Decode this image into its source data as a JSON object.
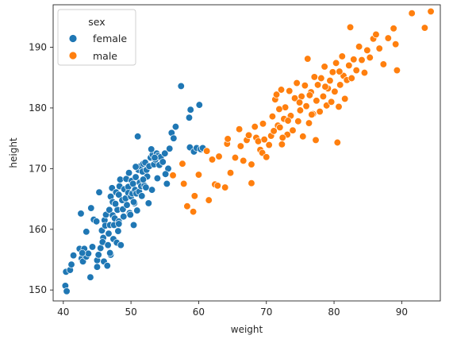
{
  "chart_data": {
    "type": "scatter",
    "title": "",
    "xlabel": "weight",
    "ylabel": "height",
    "xlim": [
      38.5,
      95.7
    ],
    "ylim": [
      148.2,
      197.0
    ],
    "xticks": [
      40,
      50,
      60,
      70,
      80,
      90
    ],
    "yticks": [
      150,
      160,
      170,
      180,
      190
    ],
    "grid": false,
    "legend": {
      "title": "sex",
      "placement": "top-left"
    },
    "colors": {
      "female": "#1f77b4",
      "male": "#ff7f0e",
      "edge": "#ffffff",
      "axis": "#262626"
    },
    "series": [
      {
        "name": "female",
        "points": [
          [
            40.3,
            150.7
          ],
          [
            40.5,
            149.8
          ],
          [
            40.4,
            153.0
          ],
          [
            41.0,
            153.3
          ],
          [
            41.2,
            154.2
          ],
          [
            41.5,
            155.7
          ],
          [
            42.4,
            156.8
          ],
          [
            42.7,
            155.2
          ],
          [
            42.6,
            162.6
          ],
          [
            42.9,
            154.7
          ],
          [
            43.1,
            156.8
          ],
          [
            43.4,
            155.5
          ],
          [
            43.4,
            159.6
          ],
          [
            43.7,
            156.0
          ],
          [
            44.1,
            163.5
          ],
          [
            44.0,
            152.1
          ],
          [
            44.3,
            157.1
          ],
          [
            44.5,
            161.6
          ],
          [
            45.0,
            154.9
          ],
          [
            45.0,
            153.8
          ],
          [
            45.3,
            166.1
          ],
          [
            45.5,
            156.9
          ],
          [
            45.7,
            159.8
          ],
          [
            45.9,
            158.6
          ],
          [
            45.8,
            157.9
          ],
          [
            46.0,
            154.7
          ],
          [
            46.1,
            161.5
          ],
          [
            46.2,
            160.6
          ],
          [
            46.3,
            162.4
          ],
          [
            46.5,
            154.0
          ],
          [
            46.6,
            157.4
          ],
          [
            46.7,
            159.3
          ],
          [
            46.8,
            163.2
          ],
          [
            46.9,
            160.7
          ],
          [
            47.0,
            155.8
          ],
          [
            47.0,
            165.4
          ],
          [
            47.2,
            166.8
          ],
          [
            47.3,
            164.5
          ],
          [
            47.3,
            162.3
          ],
          [
            47.4,
            158.4
          ],
          [
            47.5,
            160.7
          ],
          [
            47.6,
            161.8
          ],
          [
            47.8,
            166.1
          ],
          [
            47.9,
            157.8
          ],
          [
            48.0,
            163.2
          ],
          [
            48.1,
            159.7
          ],
          [
            48.2,
            165.7
          ],
          [
            48.2,
            161.3
          ],
          [
            48.3,
            167.1
          ],
          [
            48.4,
            168.2
          ],
          [
            48.5,
            157.4
          ],
          [
            48.7,
            164.8
          ],
          [
            48.8,
            163.3
          ],
          [
            48.9,
            162.1
          ],
          [
            49.0,
            166.6
          ],
          [
            49.2,
            165.1
          ],
          [
            49.3,
            168.3
          ],
          [
            49.4,
            164.0
          ],
          [
            49.6,
            167.0
          ],
          [
            49.6,
            166.0
          ],
          [
            49.7,
            169.3
          ],
          [
            49.8,
            162.7
          ],
          [
            50.0,
            165.4
          ],
          [
            50.1,
            168.0
          ],
          [
            50.2,
            165.9
          ],
          [
            50.3,
            167.5
          ],
          [
            50.4,
            160.7
          ],
          [
            50.5,
            164.3
          ],
          [
            50.6,
            166.5
          ],
          [
            50.7,
            168.6
          ],
          [
            50.8,
            165.9
          ],
          [
            50.9,
            163.1
          ],
          [
            51.0,
            175.3
          ],
          [
            51.1,
            169.8
          ],
          [
            51.2,
            166.2
          ],
          [
            51.3,
            167.7
          ],
          [
            51.4,
            170.4
          ],
          [
            51.5,
            167.1
          ],
          [
            51.6,
            165.5
          ],
          [
            51.7,
            169.5
          ],
          [
            51.8,
            170.8
          ],
          [
            51.9,
            168.3
          ],
          [
            52.0,
            167.2
          ],
          [
            52.1,
            171.0
          ],
          [
            52.3,
            169.8
          ],
          [
            52.4,
            168.7
          ],
          [
            52.6,
            164.3
          ],
          [
            52.7,
            170.4
          ],
          [
            52.9,
            171.8
          ],
          [
            53.1,
            166.5
          ],
          [
            53.2,
            172.3
          ],
          [
            53.4,
            170.7
          ],
          [
            53.6,
            171.5
          ],
          [
            53.8,
            172.5
          ],
          [
            53.9,
            168.4
          ],
          [
            54.0,
            172.1
          ],
          [
            54.2,
            170.6
          ],
          [
            54.4,
            171.9
          ],
          [
            54.7,
            171.1
          ],
          [
            55.0,
            172.5
          ],
          [
            55.3,
            167.5
          ],
          [
            55.5,
            170.0
          ],
          [
            55.7,
            173.3
          ],
          [
            56.0,
            175.9
          ],
          [
            56.3,
            175.0
          ],
          [
            56.6,
            176.9
          ],
          [
            57.4,
            183.6
          ],
          [
            58.6,
            178.4
          ],
          [
            58.8,
            179.7
          ],
          [
            58.7,
            173.5
          ],
          [
            59.3,
            172.8
          ],
          [
            59.7,
            173.4
          ],
          [
            60.1,
            180.5
          ],
          [
            60.3,
            173.2
          ],
          [
            60.6,
            173.4
          ],
          [
            50.4,
            164.5
          ],
          [
            48.2,
            160.9
          ],
          [
            44.9,
            161.3
          ],
          [
            46.9,
            156.1
          ],
          [
            53.5,
            171.8
          ],
          [
            52.2,
            166.9
          ],
          [
            49.9,
            162.4
          ],
          [
            45.2,
            155.8
          ],
          [
            42.8,
            156.1
          ],
          [
            55.1,
            169.1
          ],
          [
            51.8,
            168.2
          ],
          [
            47.7,
            164.2
          ],
          [
            50.7,
            170.3
          ],
          [
            53.0,
            173.2
          ]
        ]
      },
      {
        "name": "male",
        "points": [
          [
            56.2,
            168.9
          ],
          [
            57.6,
            170.8
          ],
          [
            57.8,
            167.5
          ],
          [
            58.3,
            163.8
          ],
          [
            59.2,
            162.9
          ],
          [
            59.4,
            165.5
          ],
          [
            60.0,
            169.0
          ],
          [
            61.2,
            172.9
          ],
          [
            61.5,
            164.8
          ],
          [
            62.0,
            171.5
          ],
          [
            62.4,
            167.4
          ],
          [
            62.8,
            167.2
          ],
          [
            63.0,
            172.0
          ],
          [
            63.9,
            166.9
          ],
          [
            64.2,
            174.1
          ],
          [
            64.3,
            174.9
          ],
          [
            64.7,
            169.3
          ],
          [
            65.4,
            171.8
          ],
          [
            66.0,
            176.5
          ],
          [
            66.2,
            173.7
          ],
          [
            66.6,
            171.3
          ],
          [
            67.1,
            174.7
          ],
          [
            67.4,
            175.5
          ],
          [
            67.8,
            170.7
          ],
          [
            67.8,
            167.6
          ],
          [
            68.3,
            176.9
          ],
          [
            68.5,
            175.1
          ],
          [
            68.8,
            174.5
          ],
          [
            69.1,
            173.1
          ],
          [
            69.4,
            172.6
          ],
          [
            69.5,
            177.4
          ],
          [
            70.0,
            171.9
          ],
          [
            70.4,
            173.9
          ],
          [
            70.7,
            175.4
          ],
          [
            70.9,
            178.6
          ],
          [
            71.1,
            176.2
          ],
          [
            71.3,
            181.4
          ],
          [
            71.5,
            182.2
          ],
          [
            71.7,
            177.1
          ],
          [
            72.0,
            176.8
          ],
          [
            72.2,
            183.0
          ],
          [
            72.3,
            174.0
          ],
          [
            72.6,
            178.2
          ],
          [
            72.8,
            180.1
          ],
          [
            73.1,
            175.6
          ],
          [
            73.4,
            182.8
          ],
          [
            73.6,
            178.7
          ],
          [
            73.9,
            176.3
          ],
          [
            74.2,
            181.6
          ],
          [
            74.5,
            184.1
          ],
          [
            74.7,
            177.8
          ],
          [
            75.0,
            179.6
          ],
          [
            75.2,
            181.9
          ],
          [
            75.4,
            175.3
          ],
          [
            75.7,
            183.7
          ],
          [
            75.9,
            180.3
          ],
          [
            76.1,
            188.1
          ],
          [
            76.3,
            177.5
          ],
          [
            76.6,
            182.6
          ],
          [
            76.9,
            179.0
          ],
          [
            77.1,
            185.1
          ],
          [
            77.3,
            174.7
          ],
          [
            77.4,
            181.2
          ],
          [
            77.6,
            183.8
          ],
          [
            77.9,
            179.4
          ],
          [
            78.1,
            184.9
          ],
          [
            78.4,
            181.9
          ],
          [
            78.6,
            186.8
          ],
          [
            78.9,
            180.4
          ],
          [
            79.1,
            183.2
          ],
          [
            79.4,
            184.5
          ],
          [
            79.6,
            181.0
          ],
          [
            79.8,
            185.9
          ],
          [
            80.1,
            182.7
          ],
          [
            80.3,
            187.4
          ],
          [
            80.5,
            174.3
          ],
          [
            80.7,
            180.2
          ],
          [
            80.9,
            183.8
          ],
          [
            81.2,
            188.5
          ],
          [
            81.4,
            185.3
          ],
          [
            81.6,
            181.5
          ],
          [
            81.9,
            184.6
          ],
          [
            82.2,
            187.0
          ],
          [
            82.4,
            193.3
          ],
          [
            82.6,
            184.9
          ],
          [
            82.9,
            188.0
          ],
          [
            83.3,
            186.2
          ],
          [
            83.7,
            190.1
          ],
          [
            84.1,
            187.9
          ],
          [
            84.5,
            185.8
          ],
          [
            84.9,
            189.5
          ],
          [
            85.3,
            188.3
          ],
          [
            85.8,
            191.4
          ],
          [
            86.2,
            192.1
          ],
          [
            86.7,
            189.8
          ],
          [
            87.3,
            187.2
          ],
          [
            88.0,
            191.5
          ],
          [
            88.8,
            193.1
          ],
          [
            89.1,
            190.5
          ],
          [
            89.3,
            186.2
          ],
          [
            91.5,
            195.6
          ],
          [
            93.4,
            193.2
          ],
          [
            94.3,
            195.9
          ],
          [
            71.9,
            179.8
          ],
          [
            74.9,
            180.9
          ],
          [
            76.7,
            178.9
          ],
          [
            78.7,
            183.5
          ],
          [
            73.2,
            177.9
          ],
          [
            80.8,
            186.0
          ],
          [
            69.7,
            174.8
          ],
          [
            72.4,
            175.1
          ],
          [
            76.4,
            182.1
          ]
        ]
      }
    ]
  }
}
